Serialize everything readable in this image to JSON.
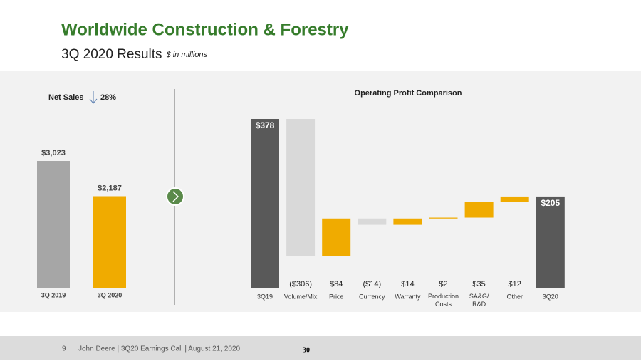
{
  "header": {
    "title": "Worldwide Construction & Forestry",
    "subtitle": "3Q 2020 Results",
    "subtitle_note": "$ in millions"
  },
  "chart_data": [
    {
      "type": "bar",
      "title": "Net Sales",
      "annotation": "28%",
      "categories": [
        "3Q 2019",
        "3Q 2020"
      ],
      "values": [
        3023,
        2187
      ],
      "value_labels": [
        "$3,023",
        "$2,187"
      ],
      "colors": [
        "#a6a6a6",
        "#f0ab00"
      ]
    },
    {
      "type": "waterfall",
      "title": "Operating Profit Comparison",
      "categories": [
        "3Q19",
        "Volume/Mix",
        "Price",
        "Currency",
        "Warranty",
        "Production Costs",
        "SA&G/ R&D",
        "Other",
        "3Q20"
      ],
      "values": [
        378,
        -306,
        84,
        -14,
        14,
        2,
        35,
        12,
        205
      ],
      "value_labels": [
        "$378",
        "($306)",
        "$84",
        "($14)",
        "$14",
        "$2",
        "$35",
        "$12",
        "$205"
      ],
      "colors": [
        "#595959",
        "#d9d9d9",
        "#f0ab00",
        "#d9d9d9",
        "#f0ab00",
        "#f0ab00",
        "#f0ab00",
        "#f0ab00",
        "#595959"
      ]
    }
  ],
  "footer": {
    "page": "9",
    "text": "John Deere | 3Q20 Earnings Call | August 21, 2020",
    "number": "30"
  }
}
